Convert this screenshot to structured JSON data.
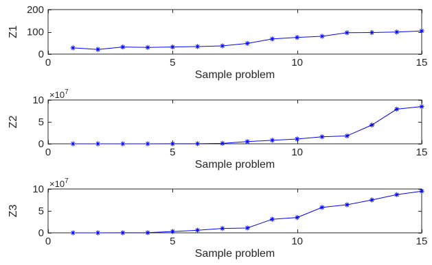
{
  "chart_data": [
    {
      "type": "line",
      "xlabel": "Sample problem",
      "ylabel": "Z1",
      "xlim": [
        0,
        15
      ],
      "ylim": [
        0,
        200
      ],
      "xticks": [
        0,
        5,
        10,
        15
      ],
      "yticks": [
        0,
        100,
        200
      ],
      "ytick_labels": [
        "0",
        "100",
        "200"
      ],
      "exponent_base": "",
      "exponent_power": "",
      "grid": false,
      "color": "#0000ff",
      "marker": "asterisk",
      "x": [
        1,
        2,
        3,
        4,
        5,
        6,
        7,
        8,
        9,
        10,
        11,
        12,
        13,
        14,
        15
      ],
      "values": [
        28,
        21,
        32,
        30,
        32,
        34,
        37,
        48,
        68,
        75,
        80,
        96,
        97,
        99,
        104
      ]
    },
    {
      "type": "line",
      "xlabel": "Sample problem",
      "ylabel": "Z2",
      "xlim": [
        0,
        15
      ],
      "ylim": [
        0,
        100000000
      ],
      "xticks": [
        0,
        5,
        10,
        15
      ],
      "yticks": [
        0,
        50000000,
        100000000
      ],
      "ytick_labels": [
        "0",
        "5",
        "10"
      ],
      "exponent_base": "×10",
      "exponent_power": "7",
      "grid": false,
      "color": "#0000ff",
      "marker": "asterisk",
      "x": [
        1,
        2,
        3,
        4,
        5,
        6,
        7,
        8,
        9,
        10,
        11,
        12,
        13,
        14,
        15
      ],
      "values": [
        0,
        0,
        0,
        0,
        100000,
        200000,
        1000000,
        5000000,
        8000000,
        11000000,
        16000000,
        18000000,
        43000000,
        79000000,
        85000000
      ]
    },
    {
      "type": "line",
      "xlabel": "Sample problem",
      "ylabel": "Z3",
      "xlim": [
        0,
        15
      ],
      "ylim": [
        0,
        100000000
      ],
      "xticks": [
        0,
        5,
        10,
        15
      ],
      "yticks": [
        0,
        50000000,
        100000000
      ],
      "ytick_labels": [
        "0",
        "5",
        "10"
      ],
      "exponent_base": "×10",
      "exponent_power": "7",
      "grid": false,
      "color": "#0000ff",
      "marker": "asterisk",
      "x": [
        1,
        2,
        3,
        4,
        5,
        6,
        7,
        8,
        9,
        10,
        11,
        12,
        13,
        14,
        15
      ],
      "values": [
        0,
        0,
        100000,
        300000,
        3000000,
        6000000,
        10000000,
        11000000,
        31000000,
        35000000,
        58000000,
        64000000,
        75000000,
        87000000,
        95000000
      ]
    }
  ]
}
